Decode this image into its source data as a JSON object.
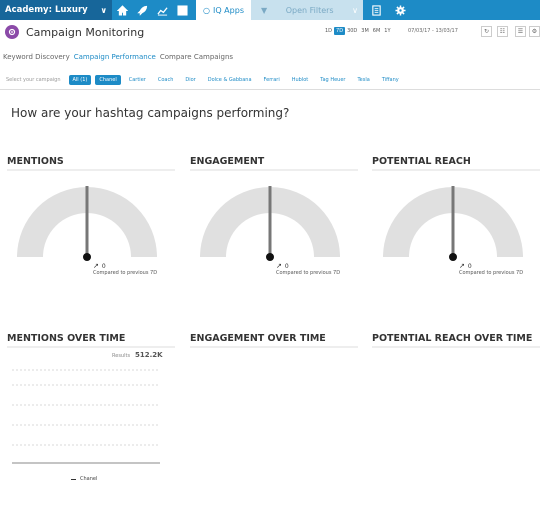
{
  "topnav": {
    "title": "Academy: Luxury",
    "iq_label": "IQ Apps",
    "filters_label": "Open Filters"
  },
  "header": {
    "title": "Campaign Monitoring",
    "ranges": [
      "1D",
      "7D",
      "30D",
      "3M",
      "6M",
      "1Y"
    ],
    "active_range": "7D",
    "date_range": "07/03/17 - 13/03/17"
  },
  "tabs": [
    "Keyword Discovery",
    "Campaign Performance",
    "Compare Campaigns"
  ],
  "active_tab": "Campaign Performance",
  "selector": {
    "label": "Select your campaign",
    "chips": [
      "All (1)",
      "Chanel",
      "Cartier",
      "Coach",
      "Dior",
      "Dolce & Gabbana",
      "Ferrari",
      "Hublot",
      "Tag Heuer",
      "Tesla",
      "Tiffany"
    ]
  },
  "question": "How are your hashtag campaigns performing?",
  "gauges": [
    {
      "title": "MENTIONS",
      "value": "0",
      "compare": "Compared to previous 7D"
    },
    {
      "title": "ENGAGEMENT",
      "value": "0",
      "compare": "Compared to previous 7D"
    },
    {
      "title": "POTENTIAL REACH",
      "value": "0",
      "compare": "Compared to previous 7D"
    }
  ],
  "over_time": {
    "mentions_title": "MENTIONS OVER TIME",
    "engagement_title": "ENGAGEMENT OVER TIME",
    "reach_title": "POTENTIAL REACH OVER TIME",
    "results_label": "Results",
    "results_value": "512.2K",
    "legend_series": "Chanel"
  },
  "colors": {
    "nav_blue": "#1d8bc6",
    "nav_dark": "#17669a",
    "brand_purple": "#8b4aa8",
    "gauge_track": "#e0e0e0"
  }
}
